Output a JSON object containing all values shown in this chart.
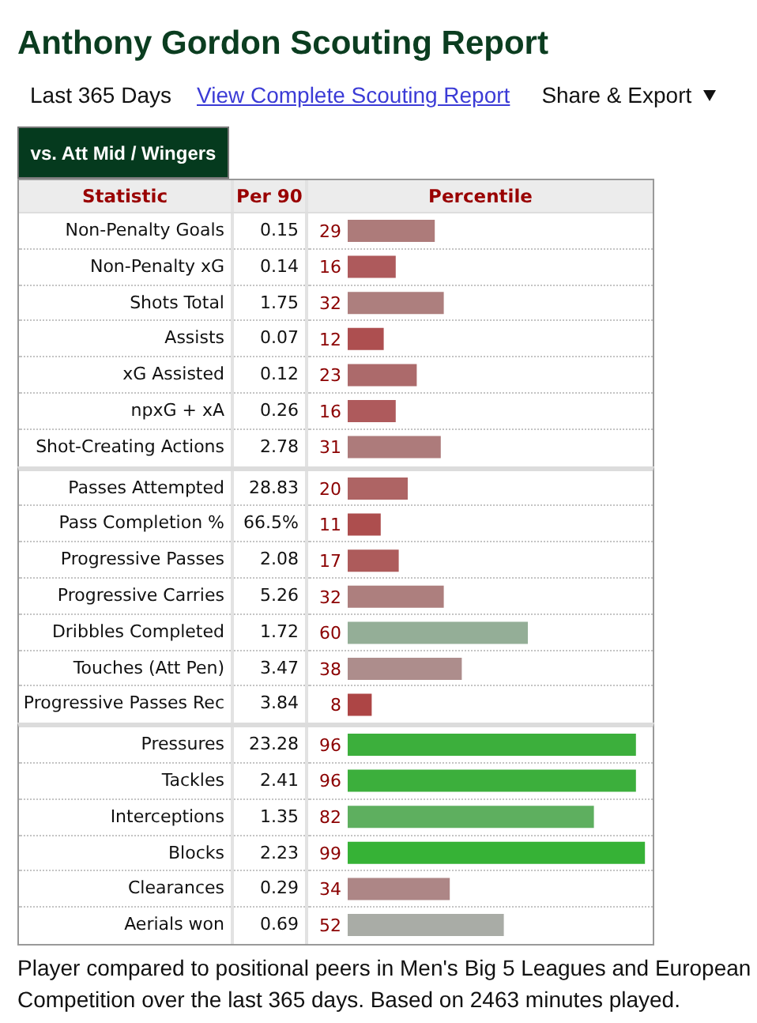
{
  "chart_data": [
    {
      "type": "bar",
      "orientation": "horizontal",
      "title": "Anthony Gordon Scouting Report",
      "annotations": [
        "Last 365 Days",
        "View Complete Scouting Report",
        "Share & Export",
        "vs. Att Mid / Wingers"
      ],
      "ylabel": "Statistic",
      "y2label": "Per 90",
      "categories": [
        "Non-Penalty Goals",
        "Non-Penalty xG",
        "Shots Total",
        "Assists",
        "xG Assisted",
        "npxG + xA",
        "Shot-Creating Actions"
      ],
      "y2_categories": [
        "0.15",
        "0.14",
        "1.75",
        "0.07",
        "0.12",
        "0.26",
        "2.78"
      ],
      "series": [
        {
          "name": "Percentile",
          "values": [
            29,
            16,
            32,
            12,
            23,
            16,
            31
          ],
          "colors": [
            "#ad7b7a",
            "#ae5a5c",
            "#ad7f7e",
            "#ad4f50",
            "#ac6a6b",
            "#ae5a5c",
            "#ad7b7b"
          ]
        }
      ],
      "xlim": [
        0,
        100
      ],
      "tick_labels": false,
      "data_labels": true
    },
    {
      "type": "bar",
      "orientation": "horizontal",
      "categories": [
        "Passes Attempted",
        "Pass Completion %",
        "Progressive Passes",
        "Progressive Carries",
        "Dribbles Completed",
        "Touches (Att Pen)",
        "Progressive Passes Rec"
      ],
      "y2_categories": [
        "28.83",
        "66.5%",
        "2.08",
        "5.26",
        "1.72",
        "3.47",
        "3.84"
      ],
      "series": [
        {
          "values": [
            20,
            11,
            17,
            32,
            60,
            38,
            8
          ],
          "colors": [
            "#ae6464",
            "#ad4e4e",
            "#ad5b5b",
            "#ad7f7e",
            "#94ae97",
            "#ad8d8c",
            "#ad4545"
          ]
        }
      ],
      "xlim": [
        0,
        100
      ],
      "tick_labels": false,
      "data_labels": true
    },
    {
      "type": "bar",
      "orientation": "horizontal",
      "categories": [
        "Pressures",
        "Tackles",
        "Interceptions",
        "Blocks",
        "Clearances",
        "Aerials won"
      ],
      "y2_categories": [
        "23.28",
        "2.41",
        "1.35",
        "2.23",
        "0.29",
        "0.69"
      ],
      "series": [
        {
          "values": [
            96,
            96,
            82,
            99,
            34,
            52
          ],
          "colors": [
            "#3caf3c",
            "#3caf3c",
            "#5eaf5f",
            "#36b236",
            "#ad8686",
            "#a9aca6"
          ]
        }
      ],
      "xlim": [
        0,
        100
      ],
      "tick_labels": false,
      "data_labels": true,
      "annotations": [
        "Player compared to positional peers in Men's Big 5 Leagues and European Competition over the last 365 days. Based on 2463 minutes played."
      ]
    }
  ]
}
